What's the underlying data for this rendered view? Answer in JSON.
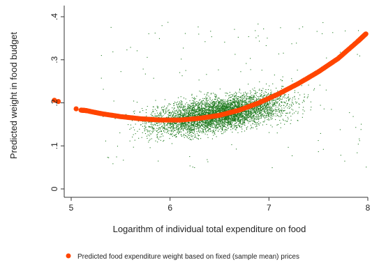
{
  "chart_data": {
    "type": "scatter",
    "xlabel": "Logarithm of individual total expenditure on food",
    "ylabel": "Predicted weight in food budget",
    "xlim": [
      4.8,
      8.0
    ],
    "ylim": [
      -0.01,
      0.425
    ],
    "x_ticks": [
      5,
      6,
      7,
      8
    ],
    "x_tick_labels": [
      "5",
      "6",
      "7",
      "8"
    ],
    "y_ticks": [
      0,
      0.1,
      0.2,
      0.3,
      0.4
    ],
    "y_tick_labels": [
      "0",
      ".1",
      ".2",
      ".3",
      ".4"
    ],
    "grid": false,
    "legend_position": "bottom",
    "series": [
      {
        "name": "",
        "kind": "cloud",
        "color": "#1f7a1f",
        "x_range": [
          5.2,
          8.0
        ],
        "center_x": 6.5,
        "trend": [
          [
            5.4,
            0.14
          ],
          [
            6.0,
            0.16
          ],
          [
            6.5,
            0.175
          ],
          [
            7.0,
            0.195
          ],
          [
            7.5,
            0.215
          ],
          [
            8.0,
            0.24
          ]
        ]
      },
      {
        "name": "Predicted food expenditure weight based on fixed (sample mean) prices",
        "kind": "fitted",
        "color": "#ff4500",
        "points": [
          [
            4.83,
            0.206
          ],
          [
            4.87,
            0.203
          ],
          [
            5.05,
            0.186
          ],
          [
            5.1,
            0.183
          ],
          [
            5.15,
            0.182
          ],
          [
            5.3,
            0.175
          ],
          [
            5.5,
            0.168
          ],
          [
            5.7,
            0.163
          ],
          [
            5.9,
            0.16
          ],
          [
            6.1,
            0.16
          ],
          [
            6.3,
            0.164
          ],
          [
            6.5,
            0.171
          ],
          [
            6.7,
            0.183
          ],
          [
            6.9,
            0.2
          ],
          [
            7.1,
            0.221
          ],
          [
            7.3,
            0.245
          ],
          [
            7.5,
            0.272
          ],
          [
            7.7,
            0.303
          ],
          [
            7.9,
            0.343
          ],
          [
            7.98,
            0.36
          ]
        ]
      }
    ]
  }
}
